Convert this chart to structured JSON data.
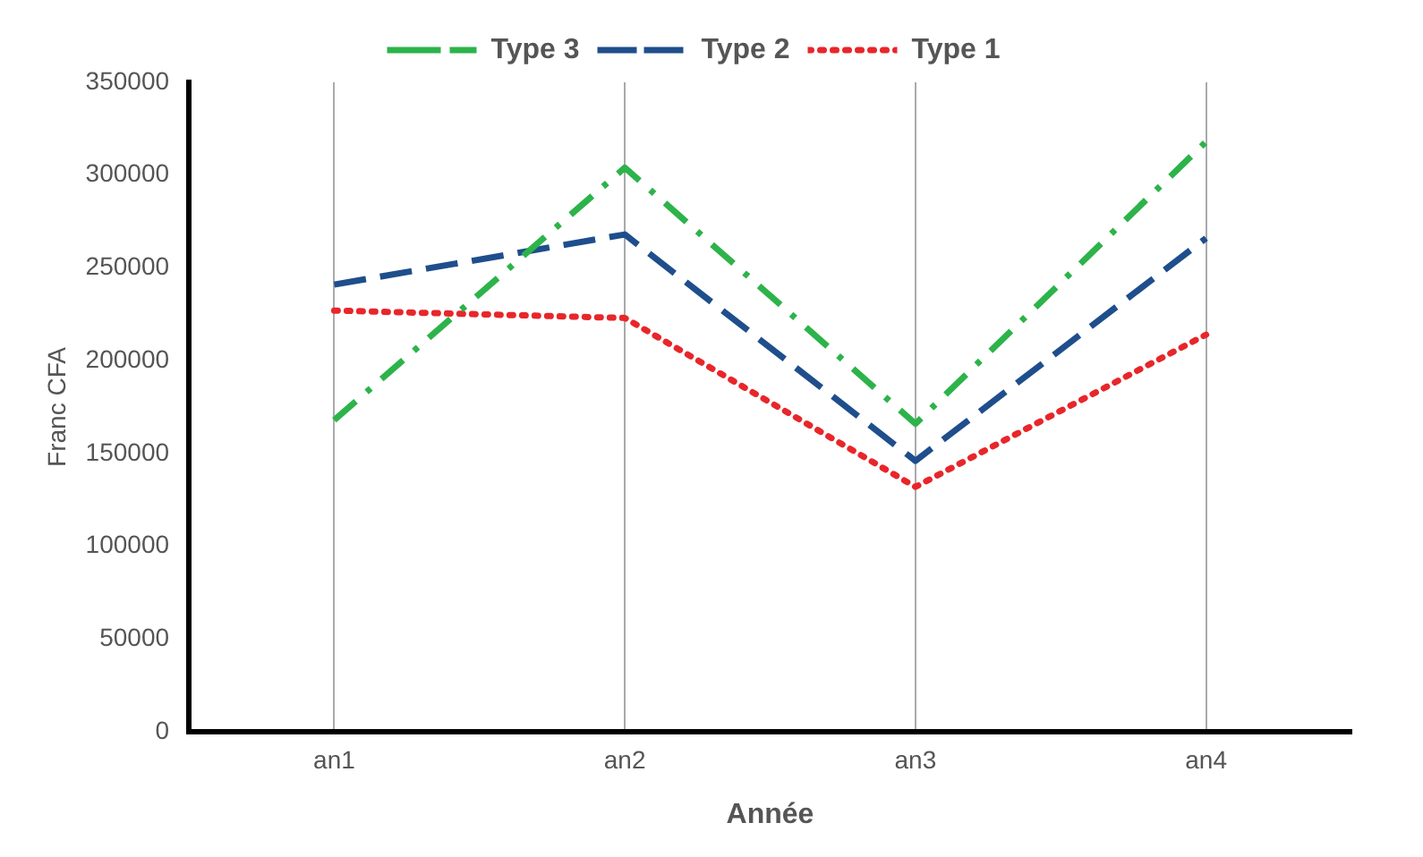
{
  "chart_data": {
    "type": "line",
    "xlabel": "Année",
    "ylabel": "Franc CFA",
    "categories": [
      "an1",
      "an2",
      "an3",
      "an4"
    ],
    "series": [
      {
        "name": "Type 3",
        "color": "#2db34a",
        "line_style": "dashdot",
        "values": [
          168000,
          304000,
          166000,
          318000
        ]
      },
      {
        "name": "Type 2",
        "color": "#1f4e8c",
        "line_style": "dashed",
        "values": [
          241000,
          268000,
          146000,
          266000
        ]
      },
      {
        "name": "Type 1",
        "color": "#e8262a",
        "line_style": "dotted",
        "values": [
          227000,
          223000,
          132000,
          214000
        ]
      }
    ],
    "ylim": [
      0,
      350000
    ],
    "yticks": [
      0,
      50000,
      100000,
      150000,
      200000,
      250000,
      300000,
      350000
    ],
    "grid": "x",
    "legend": "top",
    "marker": "none"
  }
}
